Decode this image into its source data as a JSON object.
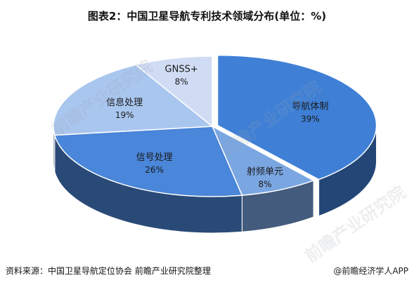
{
  "chart_data": {
    "type": "pie",
    "title": "图表2：中国卫星导航专利技术领域分布(单位：%)",
    "slices": [
      {
        "label": "导航体制",
        "value": 39,
        "display": "39%",
        "color": "#3f80d6"
      },
      {
        "label": "射频单元",
        "value": 8,
        "display": "8%",
        "color": "#7aa6e2"
      },
      {
        "label": "信号处理",
        "value": 26,
        "display": "26%",
        "color": "#4a86d9"
      },
      {
        "label": "信息处理",
        "value": 19,
        "display": "19%",
        "color": "#a9c6ee"
      },
      {
        "label": "GNSS+",
        "value": 8,
        "display": "8%",
        "color": "#cfdcf4"
      }
    ]
  },
  "footer": {
    "source": "资料来源：中国卫星导航定位协会 前瞻产业研究院整理",
    "app": "@前瞻经济学人APP"
  },
  "watermark": {
    "text": "前瞻产业研究院"
  }
}
